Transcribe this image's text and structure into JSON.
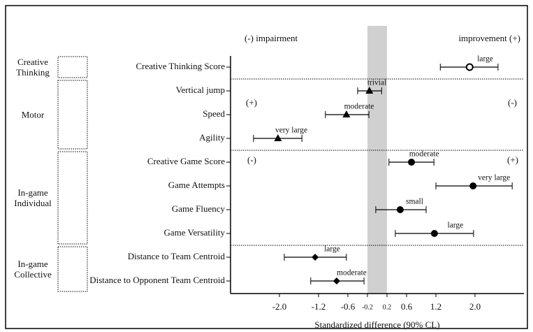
{
  "chart_data": {
    "type": "forest",
    "quadrant_labels": {
      "top_left": "(-) impairment",
      "top_right": "improvement (+)",
      "motor_left": "(+)",
      "motor_right": "(-)",
      "game_left": "(-)",
      "game_right": "(+)"
    },
    "x_label": "Standardized difference (90% CL)",
    "xlim": [
      -3,
      3
    ],
    "xticks": [
      {
        "value": -2.0,
        "label": "-2.0"
      },
      {
        "value": -1.2,
        "label": "-1.2"
      },
      {
        "value": -0.6,
        "label": "-0.6"
      },
      {
        "value": -0.2,
        "label": "-0.2"
      },
      {
        "value": 0.2,
        "label": "0.2"
      },
      {
        "value": 0.6,
        "label": "0.6"
      },
      {
        "value": 1.2,
        "label": "1.2"
      },
      {
        "value": 2.0,
        "label": "2.0"
      }
    ],
    "trivial_zone": [
      -0.2,
      0.2
    ],
    "color": "#000000",
    "groups": [
      {
        "name": "Creative Thinking",
        "items": [
          {
            "label": "Creative Thinking Score",
            "marker": "circle-open",
            "value": 1.89,
            "lower": 1.29,
            "upper": 2.47,
            "effect": "large"
          }
        ]
      },
      {
        "name": "Motor",
        "items": [
          {
            "label": "Vertical jump",
            "marker": "triangle",
            "value": -0.16,
            "lower": -0.4,
            "upper": 0.09,
            "effect": "trivial"
          },
          {
            "label": "Speed",
            "marker": "triangle",
            "value": -0.63,
            "lower": -1.06,
            "upper": -0.17,
            "effect": "moderate"
          },
          {
            "label": "Agility",
            "marker": "triangle",
            "value": -2.03,
            "lower": -2.53,
            "upper": -1.54,
            "effect": "very large"
          }
        ]
      },
      {
        "name": "In-game Individual",
        "items": [
          {
            "label": "Creative Game Score",
            "marker": "circle",
            "value": 0.7,
            "lower": 0.24,
            "upper": 1.16,
            "effect": "moderate"
          },
          {
            "label": "Game Attempts",
            "marker": "circle",
            "value": 1.96,
            "lower": 1.2,
            "upper": 2.76,
            "effect": "very large"
          },
          {
            "label": "Game Fluency",
            "marker": "circle",
            "value": 0.47,
            "lower": -0.03,
            "upper": 1.0,
            "effect": "small"
          },
          {
            "label": "Game Versatility",
            "marker": "circle",
            "value": 1.17,
            "lower": 0.37,
            "upper": 1.97,
            "effect": "large"
          }
        ]
      },
      {
        "name": "In-game Collective",
        "items": [
          {
            "label": "Distance to Team Centroid",
            "marker": "diamond",
            "value": -1.27,
            "lower": -1.9,
            "upper": -0.63,
            "effect": "large"
          },
          {
            "label": "Distance to Opponent Team Centroid",
            "marker": "diamond",
            "value": -0.83,
            "lower": -1.36,
            "upper": -0.27,
            "effect": "moderate"
          }
        ]
      }
    ]
  }
}
